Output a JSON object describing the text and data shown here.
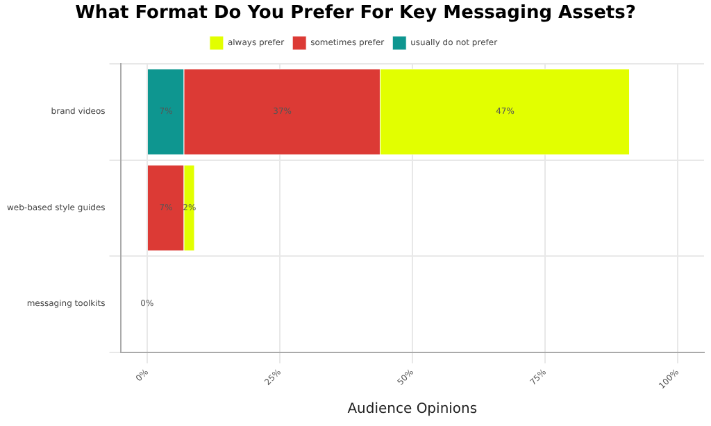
{
  "chart_data": {
    "type": "bar",
    "orientation": "horizontal",
    "stacked": true,
    "title": "What Format Do You Prefer For Key Messaging Assets?",
    "xlabel": "Audience Opinions",
    "categories": [
      "brand videos",
      "web-based style guides",
      "messaging toolkits"
    ],
    "series": [
      {
        "name": "usually do not prefer",
        "color": "#0e9690",
        "values": [
          7,
          null,
          null
        ],
        "value_labels": [
          "7%",
          null,
          null
        ]
      },
      {
        "name": "sometimes prefer",
        "color": "#dc3a35",
        "values": [
          37,
          7,
          null
        ],
        "value_labels": [
          "37%",
          "7%",
          null
        ]
      },
      {
        "name": "always prefer",
        "color": "#e2ff00",
        "values": [
          47,
          2,
          0
        ],
        "value_labels": [
          "47%",
          "2%",
          "0%"
        ]
      }
    ],
    "xlim": [
      -5,
      105
    ],
    "xticks": [
      {
        "value": 0,
        "label": "0%"
      },
      {
        "value": 25,
        "label": "25%"
      },
      {
        "value": 50,
        "label": "50%"
      },
      {
        "value": 75,
        "label": "75%"
      },
      {
        "value": 100,
        "label": "100%"
      }
    ],
    "grid": true,
    "legend": "top"
  }
}
